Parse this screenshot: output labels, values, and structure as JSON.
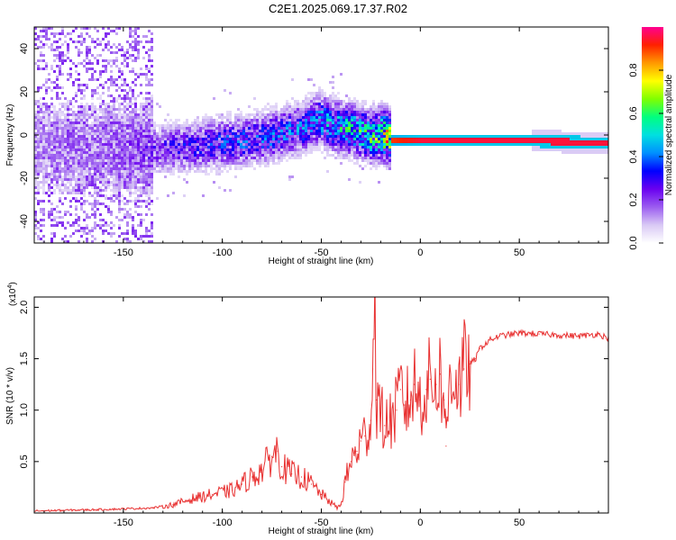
{
  "figure_title": "C2E1.2025.069.17.37.R02",
  "chart_data": [
    {
      "type": "heatmap",
      "xlabel": "Height of straight line (km)",
      "ylabel": "Frequency (Hz)",
      "xlim": [
        -195,
        95
      ],
      "ylim": [
        -50,
        50
      ],
      "xticks": [
        -150,
        -100,
        -50,
        0,
        50
      ],
      "yticks": [
        -40,
        -20,
        0,
        20,
        40
      ],
      "colorbar": {
        "label": "Normalized spectral amplitude",
        "range": [
          0.0,
          1.0
        ],
        "ticks": [
          0.0,
          0.2,
          0.4,
          0.6,
          0.8
        ],
        "tick_labels": [
          "0.0",
          "0.2",
          "0.4",
          "0.6",
          "0.8"
        ],
        "colors": [
          "#ffffff",
          "#d9c9f5",
          "#9b5cf0",
          "#6a00f0",
          "#0000ff",
          "#0090ff",
          "#00e0e0",
          "#00ff80",
          "#80ff00",
          "#ffff00",
          "#ff9900",
          "#ff2000",
          "#ff0090"
        ]
      },
      "ridge": {
        "description_points_x": [
          -195,
          -160,
          -140,
          -120,
          -100,
          -80,
          -60,
          -52,
          -45,
          -35,
          -25,
          -20,
          -15,
          0,
          20,
          40,
          60,
          80,
          95
        ],
        "description_points_y": [
          -5,
          -5,
          -6,
          -5,
          -3,
          -1,
          4,
          8,
          5,
          3,
          0,
          1,
          -2,
          -2,
          -2,
          -2,
          -2,
          -3,
          -3
        ],
        "amplitude": [
          0.15,
          0.18,
          0.22,
          0.3,
          0.35,
          0.38,
          0.4,
          0.45,
          0.5,
          0.55,
          0.6,
          0.7,
          0.9,
          0.95,
          0.95,
          0.95,
          0.95,
          0.95,
          0.95
        ]
      }
    },
    {
      "type": "line",
      "xlabel": "Height of straight line (km)",
      "ylabel": "SNR (10 * v/v)",
      "y_multiplier": "(x10",
      "y_multiplier_exp": "4",
      "xlim": [
        -195,
        95
      ],
      "ylim": [
        0,
        2.1
      ],
      "xticks": [
        -150,
        -100,
        -50,
        0,
        50
      ],
      "yticks": [
        0.5,
        1.0,
        1.5,
        2.0
      ],
      "ytick_labels": [
        "0.5",
        "1.0",
        "1.5",
        "2.0"
      ],
      "series": [
        {
          "name": "SNR",
          "color": "#e83030",
          "x": [
            -195,
            -170,
            -150,
            -135,
            -125,
            -115,
            -105,
            -95,
            -90,
            -85,
            -80,
            -75,
            -72,
            -70,
            -65,
            -60,
            -55,
            -50,
            -45,
            -42,
            -40,
            -38,
            -35,
            -32,
            -30,
            -28,
            -25,
            -24,
            -23,
            -22,
            -20,
            -18,
            -15,
            -12,
            -10,
            -8,
            -5,
            -3,
            0,
            3,
            5,
            8,
            10,
            12,
            13,
            15,
            18,
            20,
            22,
            25,
            28,
            30,
            35,
            40,
            50,
            60,
            70,
            80,
            90,
            95
          ],
          "y": [
            0.02,
            0.03,
            0.04,
            0.05,
            0.08,
            0.14,
            0.18,
            0.22,
            0.28,
            0.35,
            0.42,
            0.55,
            0.6,
            0.45,
            0.38,
            0.35,
            0.28,
            0.18,
            0.1,
            0.05,
            0.08,
            0.3,
            0.5,
            0.6,
            0.7,
            0.75,
            0.9,
            1.4,
            2.1,
            1.1,
            0.95,
            0.85,
            0.9,
            1.0,
            1.2,
            1.05,
            1.1,
            1.25,
            1.1,
            1.2,
            1.3,
            1.25,
            1.35,
            1.1,
            0.65,
            1.4,
            1.3,
            1.25,
            1.4,
            1.45,
            1.5,
            1.6,
            1.68,
            1.72,
            1.75,
            1.74,
            1.73,
            1.72,
            1.74,
            1.7
          ]
        }
      ]
    }
  ]
}
